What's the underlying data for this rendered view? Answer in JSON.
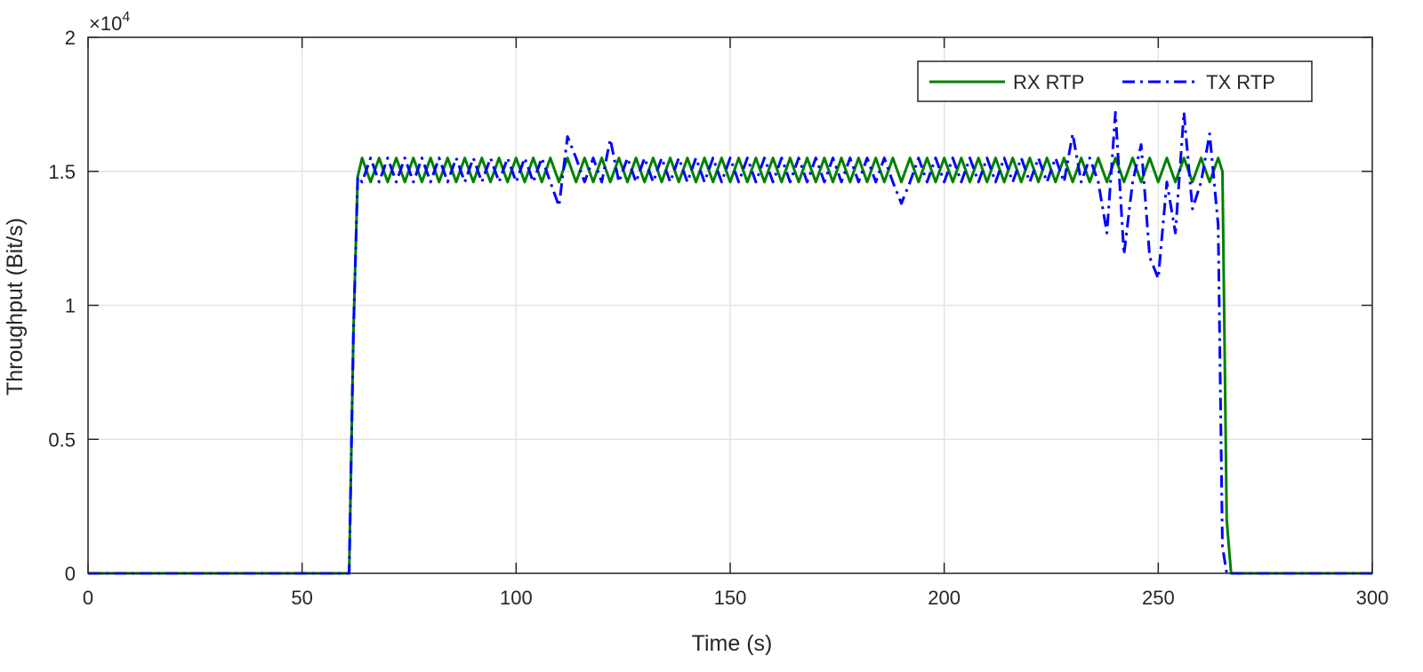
{
  "chart_data": {
    "type": "line",
    "title": "",
    "xlabel": "Time (s)",
    "ylabel": "Throughput (Bit/s)",
    "y_exponent_label": "×10",
    "y_exponent": "4",
    "xlim": [
      0,
      300
    ],
    "ylim": [
      0,
      20000
    ],
    "grid": true,
    "legend_position": "top-right",
    "x_ticks": [
      0,
      50,
      100,
      150,
      200,
      250,
      300
    ],
    "x_tick_labels": [
      "0",
      "50",
      "100",
      "150",
      "200",
      "250",
      "300"
    ],
    "y_ticks": [
      0,
      5000,
      10000,
      15000,
      20000
    ],
    "y_tick_labels": [
      "0",
      "0.5",
      "1",
      "1.5",
      "2"
    ],
    "x": [
      0,
      10,
      20,
      30,
      40,
      50,
      60,
      61,
      62,
      63,
      64,
      66,
      68,
      70,
      72,
      74,
      76,
      78,
      80,
      82,
      84,
      86,
      88,
      90,
      92,
      94,
      96,
      98,
      100,
      102,
      104,
      106,
      108,
      110,
      112,
      114,
      116,
      118,
      120,
      122,
      124,
      126,
      128,
      130,
      132,
      134,
      136,
      138,
      140,
      142,
      144,
      146,
      148,
      150,
      152,
      154,
      156,
      158,
      160,
      162,
      164,
      166,
      168,
      170,
      172,
      174,
      176,
      178,
      180,
      182,
      184,
      186,
      188,
      190,
      192,
      194,
      196,
      198,
      200,
      202,
      204,
      206,
      208,
      210,
      212,
      214,
      216,
      218,
      220,
      222,
      224,
      226,
      228,
      230,
      232,
      234,
      236,
      238,
      240,
      242,
      244,
      246,
      248,
      250,
      252,
      254,
      256,
      258,
      260,
      262,
      264,
      265,
      266,
      267,
      270,
      280,
      290,
      300
    ],
    "series": [
      {
        "name": "RX RTP",
        "color": "#008000",
        "style": "solid",
        "values": [
          0,
          0,
          0,
          0,
          0,
          0,
          0,
          0,
          9000,
          14800,
          15500,
          14600,
          15500,
          14600,
          15500,
          14600,
          15500,
          14600,
          15500,
          14600,
          15500,
          14600,
          15500,
          14600,
          15500,
          14600,
          15500,
          14600,
          15500,
          14600,
          15500,
          14600,
          15500,
          14600,
          15500,
          14600,
          15500,
          14600,
          15500,
          14600,
          15500,
          14600,
          15500,
          14600,
          15500,
          14600,
          15500,
          14600,
          15500,
          14600,
          15500,
          14600,
          15500,
          14600,
          15500,
          14600,
          15500,
          14600,
          15500,
          14600,
          15500,
          14600,
          15500,
          14600,
          15500,
          14600,
          15500,
          14600,
          15500,
          14600,
          15500,
          14600,
          15500,
          14600,
          15500,
          14600,
          15500,
          14600,
          15500,
          14600,
          15500,
          14600,
          15500,
          14600,
          15500,
          14600,
          15500,
          14600,
          15500,
          14600,
          15500,
          14600,
          15500,
          14600,
          15500,
          14600,
          15500,
          14600,
          15500,
          14600,
          15500,
          14600,
          15500,
          14600,
          15500,
          14600,
          15500,
          14600,
          15500,
          14600,
          15500,
          15000,
          2000,
          0,
          0,
          0,
          0,
          0
        ]
      },
      {
        "name": "TX RTP",
        "color": "#0000ff",
        "style": "dash-dot",
        "values": [
          0,
          0,
          0,
          0,
          0,
          0,
          0,
          0,
          9000,
          14800,
          14600,
          15500,
          14600,
          15500,
          14600,
          15500,
          14600,
          15500,
          14600,
          15500,
          14600,
          15500,
          14600,
          15500,
          14600,
          15500,
          14600,
          15500,
          14600,
          15500,
          14600,
          15500,
          14600,
          13700,
          16300,
          15500,
          14600,
          15500,
          14600,
          16200,
          14600,
          15500,
          14600,
          15500,
          14600,
          15500,
          14600,
          15500,
          14600,
          15500,
          14600,
          15500,
          14600,
          15500,
          14600,
          15500,
          14600,
          15500,
          14600,
          15500,
          14600,
          15500,
          14600,
          15500,
          14600,
          15500,
          14600,
          15500,
          14600,
          15500,
          14600,
          15500,
          14600,
          13800,
          14600,
          15500,
          14600,
          15500,
          14600,
          15500,
          14600,
          15500,
          14600,
          15500,
          14600,
          15500,
          14600,
          15500,
          14600,
          15500,
          14600,
          15500,
          14600,
          16400,
          14600,
          15500,
          14600,
          12700,
          17200,
          11900,
          14600,
          16000,
          11800,
          11000,
          14600,
          12700,
          17200,
          13600,
          14600,
          16400,
          13000,
          1000,
          0,
          0,
          0,
          0,
          0,
          0
        ]
      }
    ]
  }
}
